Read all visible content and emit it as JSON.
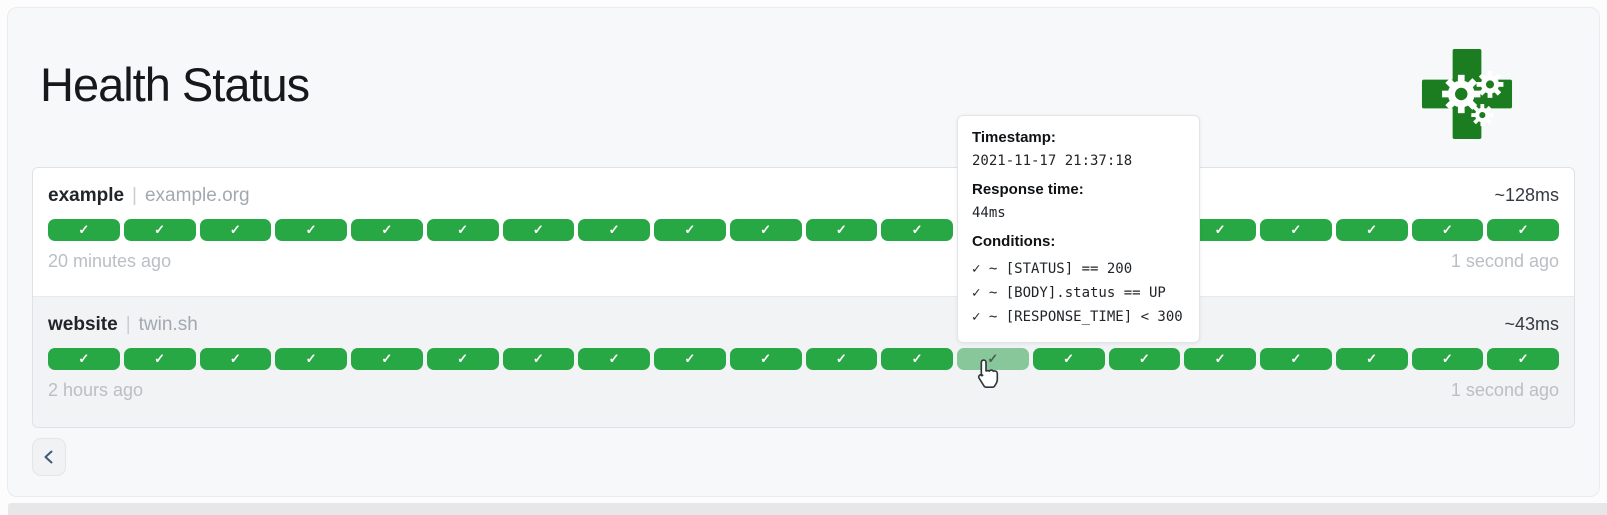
{
  "header": {
    "title": "Health Status",
    "logo_name": "green-cross-gears-logo"
  },
  "services": [
    {
      "name": "example",
      "separator": "|",
      "host": "example.org",
      "latency": "~128ms",
      "oldest": "20 minutes ago",
      "newest": "1 second ago",
      "segments": 20,
      "hovered_index": -1
    },
    {
      "name": "website",
      "separator": "|",
      "host": "twin.sh",
      "latency": "~43ms",
      "oldest": "2 hours ago",
      "newest": "1 second ago",
      "segments": 20,
      "hovered_index": 12
    }
  ],
  "icons": {
    "check": "✓",
    "back": "chevron-left"
  },
  "tooltip": {
    "timestamp_label": "Timestamp:",
    "timestamp_value": "2021-11-17 21:37:18",
    "response_time_label": "Response time:",
    "response_time_value": "44ms",
    "conditions_label": "Conditions:",
    "conditions": [
      "✓ ~ [STATUS] == 200",
      "✓ ~ [BODY].status == UP",
      "✓ ~ [RESPONSE_TIME] < 300"
    ]
  },
  "colors": {
    "success": "#28a745",
    "success_hovered": "#87c79a",
    "logo_green": "#1b7d1f"
  }
}
